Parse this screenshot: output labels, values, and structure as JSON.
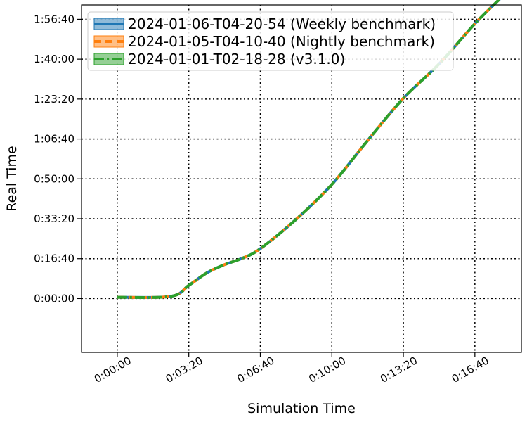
{
  "chart_data": {
    "type": "line",
    "xlabel": "Simulation Time",
    "ylabel": "Real Time",
    "x_unit": "seconds",
    "y_unit": "seconds",
    "xlim": [
      -100,
      1130
    ],
    "ylim": [
      -1350,
      7360
    ],
    "x_ticks": [
      0,
      200,
      400,
      600,
      800,
      1000
    ],
    "x_tick_labels": [
      "0:00:00",
      "0:03:20",
      "0:06:40",
      "0:10:00",
      "0:13:20",
      "0:16:40"
    ],
    "y_ticks": [
      0,
      1000,
      2000,
      3000,
      4000,
      5000,
      6000,
      7000
    ],
    "y_tick_labels": [
      "0:00:00",
      "0:16:40",
      "0:33:20",
      "0:50:00",
      "1:06:40",
      "1:23:20",
      "1:40:00",
      "1:56:40"
    ],
    "grid": true,
    "grid_style": "dotted",
    "legend_position": "upper left",
    "x": [
      0,
      150,
      200,
      250,
      300,
      350,
      400,
      500,
      600,
      700,
      800,
      900,
      1000,
      1080
    ],
    "series": [
      {
        "name": "2024-01-06-T04-20-54 (Weekly benchmark)",
        "color": "#1f77b4",
        "style": "solid",
        "y": [
          30,
          55,
          330,
          640,
          850,
          1010,
          1250,
          1985,
          2860,
          3960,
          5020,
          5880,
          6890,
          7600
        ]
      },
      {
        "name": "2024-01-05-T04-10-40 (Nightly benchmark)",
        "color": "#ff7f0e",
        "style": "dashed",
        "y": [
          30,
          55,
          330,
          640,
          850,
          1010,
          1250,
          1985,
          2860,
          3960,
          5020,
          5880,
          6890,
          7600
        ]
      },
      {
        "name": "2024-01-01-T02-18-28 (v3.1.0)",
        "color": "#2ca02c",
        "style": "dashdot",
        "y": [
          30,
          55,
          330,
          640,
          850,
          1010,
          1250,
          1985,
          2860,
          3960,
          5020,
          5880,
          6890,
          7600
        ]
      }
    ]
  }
}
